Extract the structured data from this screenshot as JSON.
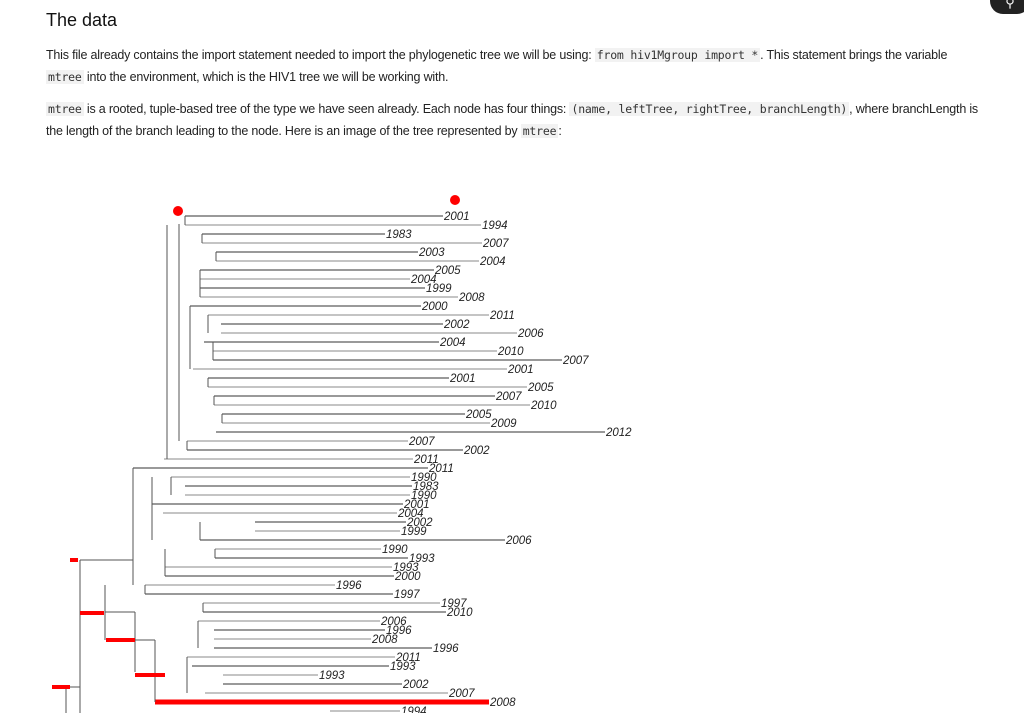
{
  "heading": "The data",
  "para1": {
    "t1": "This file already contains the import statement needed to import the phylogenetic tree we will be using: ",
    "code1": "from hiv1Mgroup import *",
    "t2": ". This statement brings the variable ",
    "code2": "mtree",
    "t3": " into the environment, which is the HIV1 tree we will be working with."
  },
  "para2": {
    "code1": "mtree",
    "t1": " is a rooted, tuple-based tree of the type we have seen already. Each node has four things: ",
    "code2": "(name, leftTree, rightTree, branchLength)",
    "t2": ", where branchLength is the length of the branch leading to the node. Here is an image of the tree represented by ",
    "code3": "mtree",
    "t3": ":"
  },
  "search_icon": "search-icon",
  "tree": {
    "highlight_color": "#ff0000",
    "leaves": [
      "2001",
      "1994",
      "1983",
      "2007",
      "2003",
      "2004",
      "2005",
      "2004",
      "1999",
      "2008",
      "2000",
      "2011",
      "2002",
      "2006",
      "2004",
      "2010",
      "2007",
      "2001",
      "2001",
      "2005",
      "2007",
      "2010",
      "2005",
      "2009",
      "2012",
      "2007",
      "2002",
      "2011",
      "2011",
      "1990",
      "1983",
      "1990",
      "2001",
      "2004",
      "2002",
      "1999",
      "2006",
      "1990",
      "1993",
      "1993",
      "2000",
      "1996",
      "1997",
      "1997",
      "2010",
      "2006",
      "1996",
      "2008",
      "1996",
      "2011",
      "1993",
      "1993",
      "2002",
      "2007",
      "2008",
      "1994"
    ]
  }
}
